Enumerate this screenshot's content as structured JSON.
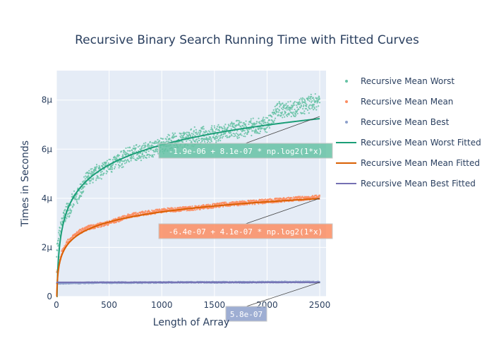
{
  "chart_data": {
    "type": "scatter",
    "title": "Recursive Binary Search Running Time with Fitted Curves",
    "xlabel": "Length of Array",
    "ylabel": "Times in Seconds",
    "xlim": [
      0,
      2560
    ],
    "ylim": [
      0,
      9.2e-06
    ],
    "x_ticks": [
      {
        "value": 0,
        "label": "0"
      },
      {
        "value": 500,
        "label": "500"
      },
      {
        "value": 1000,
        "label": "1000"
      },
      {
        "value": 1500,
        "label": "1500"
      },
      {
        "value": 2000,
        "label": "2000"
      },
      {
        "value": 2500,
        "label": "2500"
      }
    ],
    "y_ticks": [
      {
        "value": 0,
        "label": "0"
      },
      {
        "value": 2e-06,
        "label": "2μ"
      },
      {
        "value": 4e-06,
        "label": "4μ"
      },
      {
        "value": 6e-06,
        "label": "6μ"
      },
      {
        "value": 8e-06,
        "label": "8μ"
      }
    ],
    "grid": true,
    "legend_position": "right",
    "series": [
      {
        "name": "Recursive Mean Worst",
        "kind": "markers",
        "color": "#66c2a5",
        "samples": [
          [
            10,
            2e-06
          ],
          [
            50,
            3e-06
          ],
          [
            100,
            3.5e-06
          ],
          [
            200,
            4.1e-06
          ],
          [
            300,
            4.8e-06
          ],
          [
            400,
            5.1e-06
          ],
          [
            500,
            5.3e-06
          ],
          [
            700,
            5.8e-06
          ],
          [
            900,
            6e-06
          ],
          [
            1100,
            6.3e-06
          ],
          [
            1300,
            6.5e-06
          ],
          [
            1500,
            6.6e-06
          ],
          [
            1700,
            6.8e-06
          ],
          [
            1900,
            6.9e-06
          ],
          [
            2000,
            7e-06
          ],
          [
            2100,
            7.6e-06
          ],
          [
            2300,
            7.7e-06
          ],
          [
            2500,
            8e-06
          ]
        ]
      },
      {
        "name": "Recursive Mean Mean",
        "kind": "markers",
        "color": "#fc8d62",
        "samples": [
          [
            10,
            1e-06
          ],
          [
            50,
            1.8e-06
          ],
          [
            100,
            2.2e-06
          ],
          [
            200,
            2.6e-06
          ],
          [
            300,
            2.8e-06
          ],
          [
            500,
            3e-06
          ],
          [
            700,
            3.3e-06
          ],
          [
            1000,
            3.5e-06
          ],
          [
            1300,
            3.6e-06
          ],
          [
            1600,
            3.75e-06
          ],
          [
            1900,
            3.85e-06
          ],
          [
            2200,
            3.95e-06
          ],
          [
            2500,
            4.05e-06
          ]
        ]
      },
      {
        "name": "Recursive Mean Best",
        "kind": "markers",
        "color": "#8da0cb",
        "samples": [
          [
            10,
            5.4e-07
          ],
          [
            300,
            5.6e-07
          ],
          [
            600,
            5.7e-07
          ],
          [
            900,
            5.7e-07
          ],
          [
            1200,
            5.8e-07
          ],
          [
            1500,
            5.8e-07
          ],
          [
            1800,
            5.8e-07
          ],
          [
            2100,
            5.9e-07
          ],
          [
            2500,
            5.9e-07
          ]
        ]
      },
      {
        "name": "Recursive Mean Worst Fitted",
        "kind": "line",
        "color": "#1b9e77",
        "fit": {
          "a": -1.9e-06,
          "b": 8.1e-07,
          "form": "log2"
        }
      },
      {
        "name": "Recursive Mean Mean Fitted",
        "kind": "line",
        "color": "#d95f02",
        "fit": {
          "a": -6.4e-07,
          "b": 4.1e-07,
          "form": "log2"
        }
      },
      {
        "name": "Recursive Mean Best Fitted",
        "kind": "line",
        "color": "#7570b3",
        "fit": {
          "a": 5.8e-07,
          "b": 0,
          "form": "constant"
        }
      }
    ],
    "annotations": [
      {
        "text": "-1.9e-06 + 8.1e-07 * np.log2(1*x)",
        "color": "#66c2a5",
        "x": 2500,
        "y": 7.33e-06
      },
      {
        "text": "-6.4e-07 + 4.1e-07 * np.log2(1*x)",
        "color": "#fc8d62",
        "x": 2500,
        "y": 4e-06
      },
      {
        "text": "5.8e-07",
        "color": "#8da0cb",
        "x": 2500,
        "y": 5.8e-07
      }
    ]
  }
}
